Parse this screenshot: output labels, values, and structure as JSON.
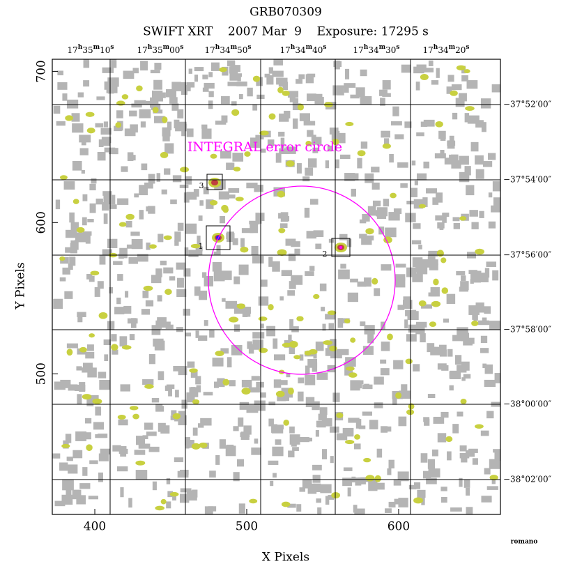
{
  "title": "GRB070309",
  "subtitle": "SWIFT XRT    2007 Mar  9    Exposure: 17295 s",
  "x_axis": {
    "label": "X Pixels",
    "lim": [
      372,
      667
    ],
    "ticks": [
      400,
      500,
      600
    ]
  },
  "y_axis": {
    "label": "Y Pixels",
    "lim": [
      407,
      708
    ],
    "ticks": [
      500,
      600,
      700
    ]
  },
  "ra_labels": [
    [
      "17",
      "h",
      "35",
      "m",
      "10",
      "s"
    ],
    [
      "17",
      "h",
      "35",
      "m",
      "00",
      "s"
    ],
    [
      "17",
      "h",
      "34",
      "m",
      "50",
      "s"
    ],
    [
      "17",
      "h",
      "34",
      "m",
      "40",
      "s"
    ],
    [
      "17",
      "h",
      "34",
      "m",
      "30",
      "s"
    ],
    [
      "17",
      "h",
      "34",
      "m",
      "20",
      "s"
    ]
  ],
  "dec_labels": [
    "−37°52′00″",
    "−37°54′00″",
    "−37°56′00″",
    "−37°58′00″",
    "−38°00′00″",
    "−38°02′00″"
  ],
  "annotation": "INTEGRAL error circle",
  "sources": [
    {
      "label": "1"
    },
    {
      "label": "2"
    },
    {
      "label": "3"
    }
  ],
  "credit": "romano"
}
